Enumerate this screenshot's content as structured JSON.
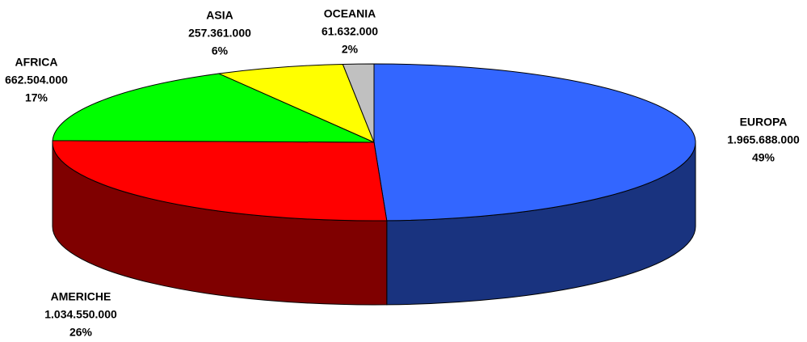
{
  "chart_data": {
    "type": "pie3d",
    "categories": [
      "EUROPA",
      "AMERICHE",
      "AFRICA",
      "ASIA",
      "OCEANIA"
    ],
    "values": [
      1965688000,
      1034550000,
      662504000,
      257361000,
      61632000
    ],
    "value_labels": [
      "1.965.688.000",
      "1.034.550.000",
      "662.504.000",
      "257.361.000",
      "61.632.000"
    ],
    "percentages": [
      49,
      26,
      17,
      6,
      2
    ],
    "percentage_labels": [
      "49%",
      "26%",
      "17%",
      "6%",
      "2%"
    ],
    "colors": [
      "#3366ff",
      "#ff0000",
      "#00ff00",
      "#ffff00",
      "#c0c0c0"
    ]
  }
}
